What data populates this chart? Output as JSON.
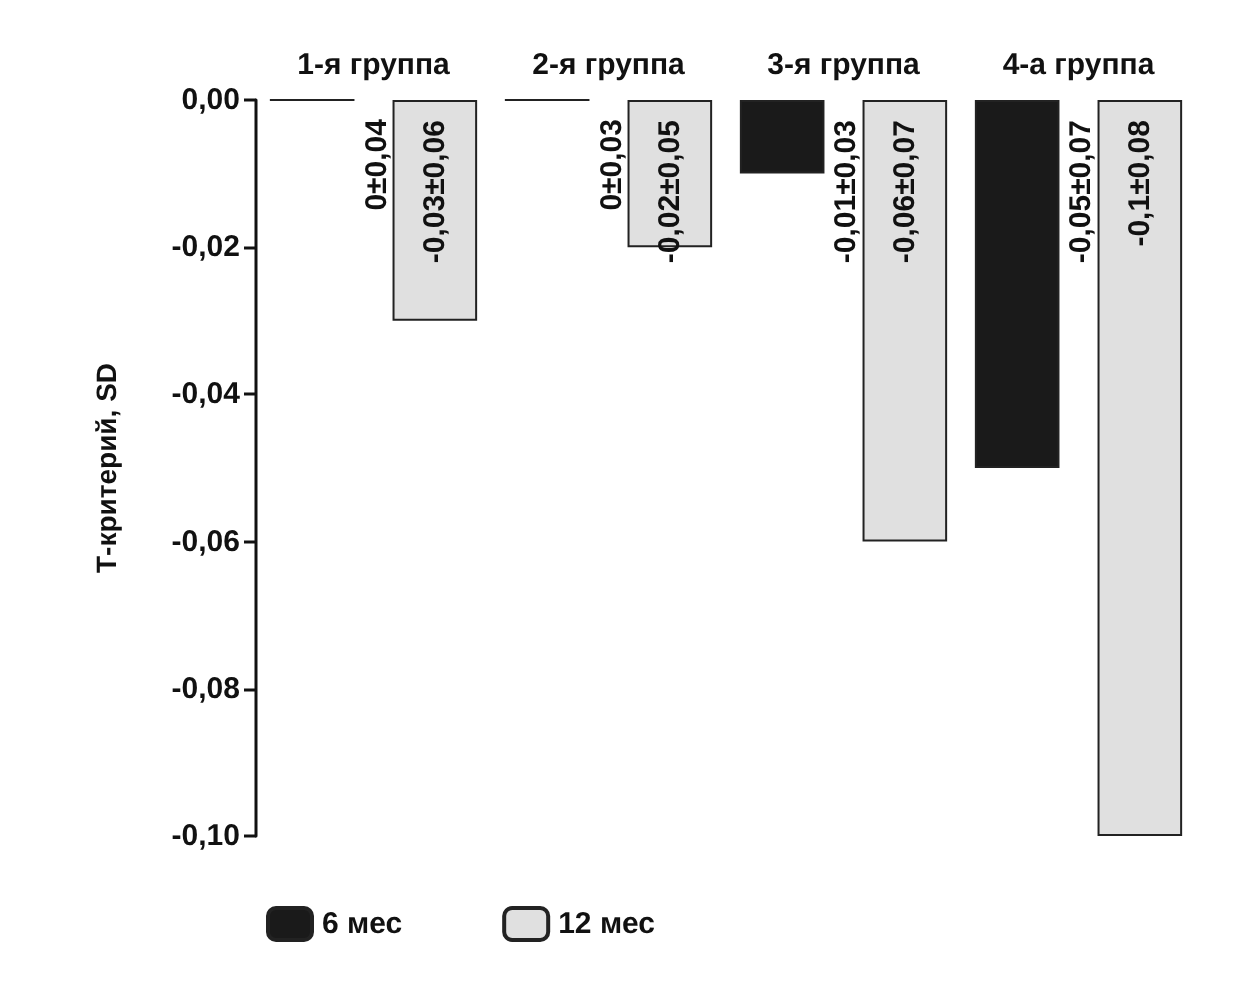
{
  "chart_data": {
    "type": "bar",
    "ylabel": "Т-критерий, SD",
    "categories": [
      "1-я группа",
      "2-я группа",
      "3-я группа",
      "4-а группа"
    ],
    "series": [
      {
        "name": "6 мес",
        "color": "#1a1a1a",
        "values": [
          0,
          0,
          -0.01,
          -0.05
        ],
        "value_labels": [
          "0±0,04",
          "0±0,03",
          "-0,01±0,03",
          "-0,05±0,07"
        ]
      },
      {
        "name": "12 мес",
        "color": "#e0e0e0",
        "values": [
          -0.03,
          -0.02,
          -0.06,
          -0.1
        ],
        "value_labels": [
          "-0,03±0,06",
          "-0,02±0,05",
          "-0,06±0,07",
          "-0,1±0,08"
        ]
      }
    ],
    "ylim": [
      -0.1,
      0
    ],
    "yticks": [
      {
        "value": 0,
        "label": "0,00"
      },
      {
        "value": -0.02,
        "label": "-0,02"
      },
      {
        "value": -0.04,
        "label": "-0,04"
      },
      {
        "value": -0.06,
        "label": "-0,06"
      },
      {
        "value": -0.08,
        "label": "-0,08"
      },
      {
        "value": -0.1,
        "label": "-0,10"
      }
    ],
    "grid": false,
    "legend": "bottom"
  }
}
